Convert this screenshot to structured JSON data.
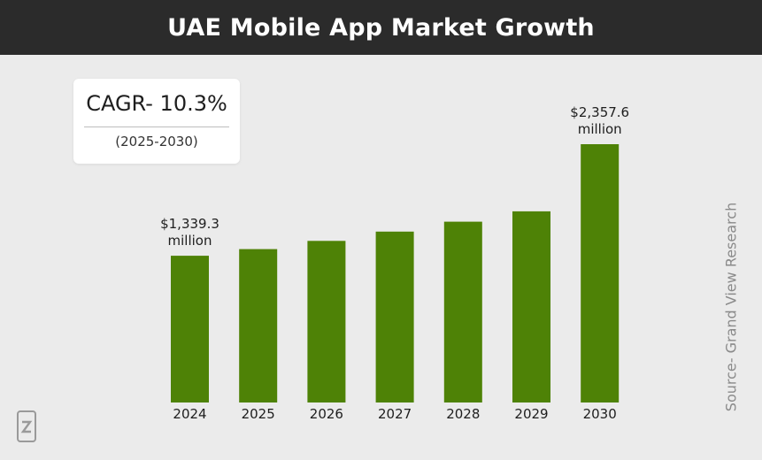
{
  "header": {
    "title": "UAE Mobile App Market Growth"
  },
  "cagr": {
    "value": "CAGR- 10.3%",
    "period": "(2025-2030)"
  },
  "source": "Source- Grand View Research",
  "colors": {
    "bar": "#4e8206",
    "header_bg": "#2b2b2b",
    "background": "#ebebeb"
  },
  "logo": {
    "icon": "brand-logo-icon"
  },
  "chart_data": {
    "type": "bar",
    "categories": [
      "2024",
      "2025",
      "2026",
      "2027",
      "2028",
      "2029",
      "2030"
    ],
    "values": [
      1339.3,
      1400,
      1475,
      1560,
      1650,
      1745,
      2357.6
    ],
    "ylim": [
      0,
      2357.6
    ],
    "data_labels": [
      {
        "category": "2024",
        "line1": "$1,339.3",
        "line2": "million"
      },
      {
        "category": "2030",
        "line1": "$2,357.6",
        "line2": "million"
      }
    ],
    "grid": false,
    "legend": "none"
  }
}
